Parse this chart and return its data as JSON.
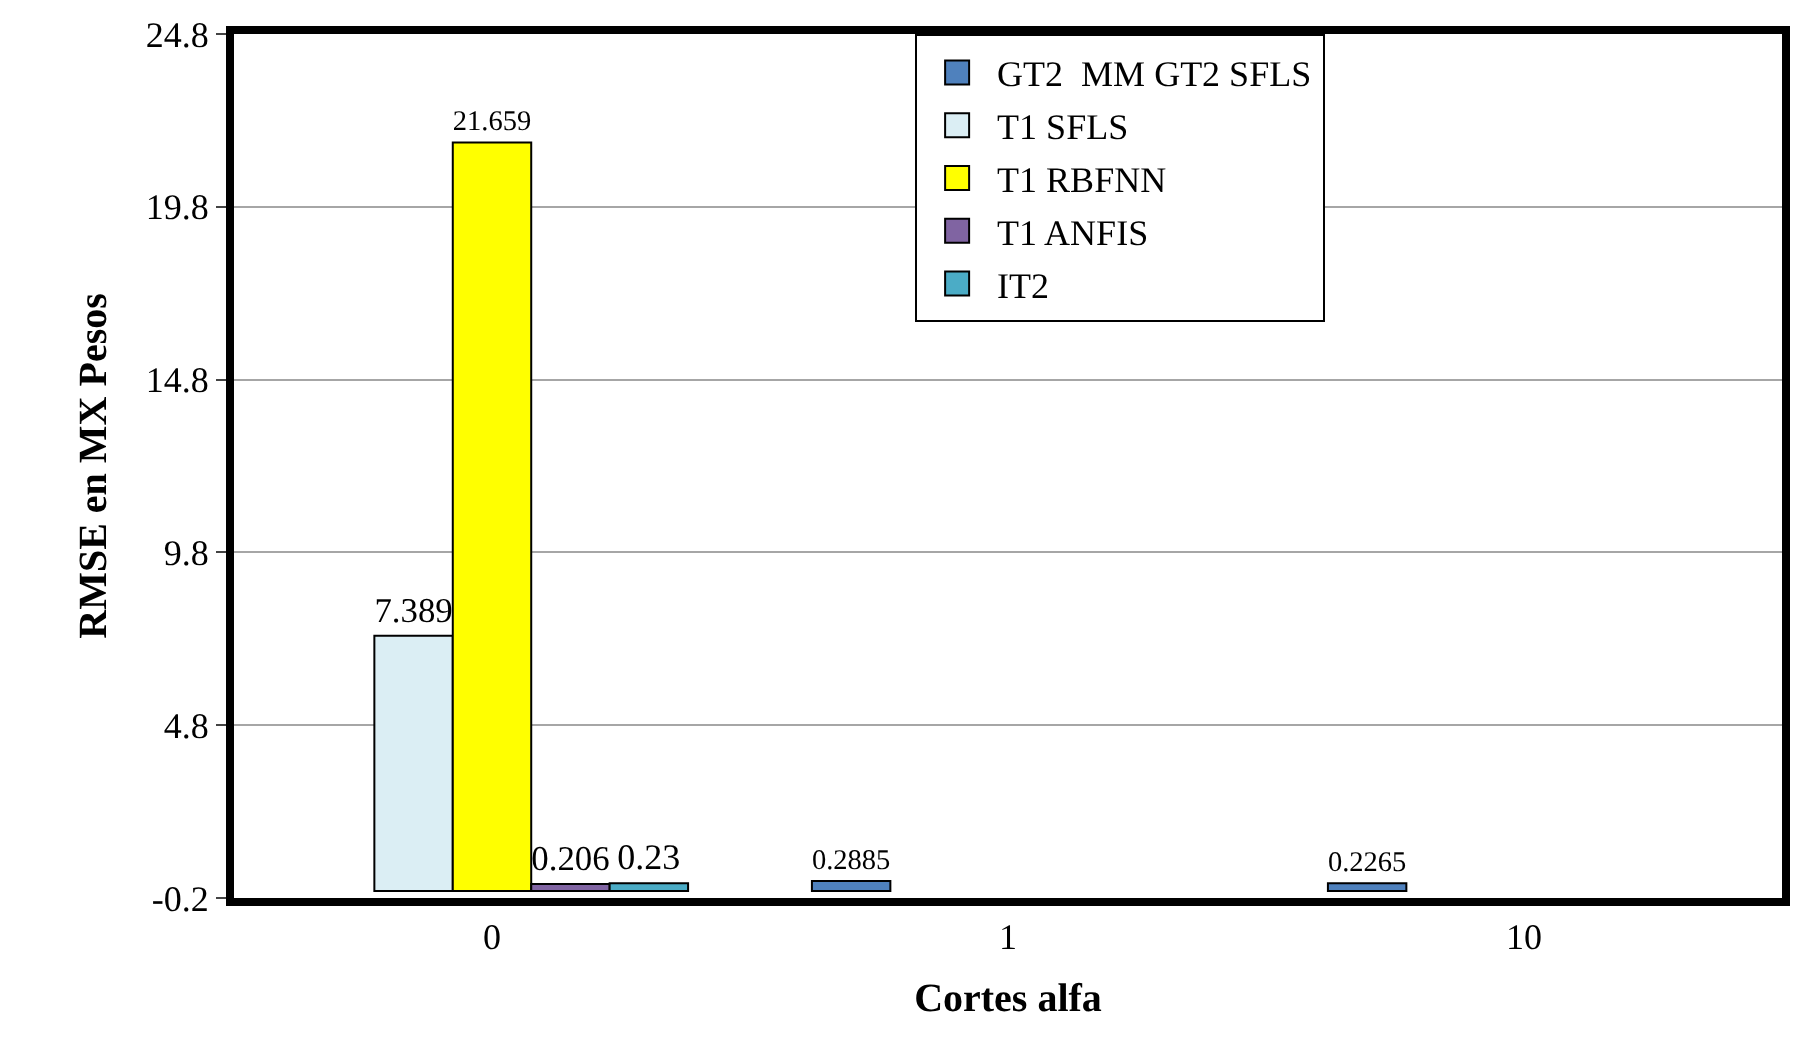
{
  "chart_data": {
    "type": "bar",
    "xlabel": "Cortes alfa",
    "ylabel": "RMSE en MX Pesos",
    "categories": [
      "0",
      "1",
      "10"
    ],
    "series": [
      {
        "name": "GT2  MM GT2 SFLS",
        "color": "#4f81bd",
        "values": [
          null,
          0.2885,
          0.2265
        ]
      },
      {
        "name": "T1 SFLS",
        "color": "#dbeef4",
        "values": [
          7.389,
          null,
          null
        ]
      },
      {
        "name": "T1 RBFNN",
        "color": "#ffff00",
        "values": [
          21.659,
          null,
          null
        ]
      },
      {
        "name": "T1 ANFIS",
        "color": "#8064a2",
        "values": [
          0.206,
          null,
          null
        ]
      },
      {
        "name": "IT2",
        "color": "#4bacc6",
        "values": [
          0.23,
          null,
          null
        ]
      }
    ],
    "ylim": [
      -0.2,
      24.8
    ],
    "yticks": [
      -0.2,
      4.8,
      9.8,
      14.8,
      19.8,
      24.8
    ],
    "grid": "y",
    "legend": "top right",
    "data_labels": true
  }
}
